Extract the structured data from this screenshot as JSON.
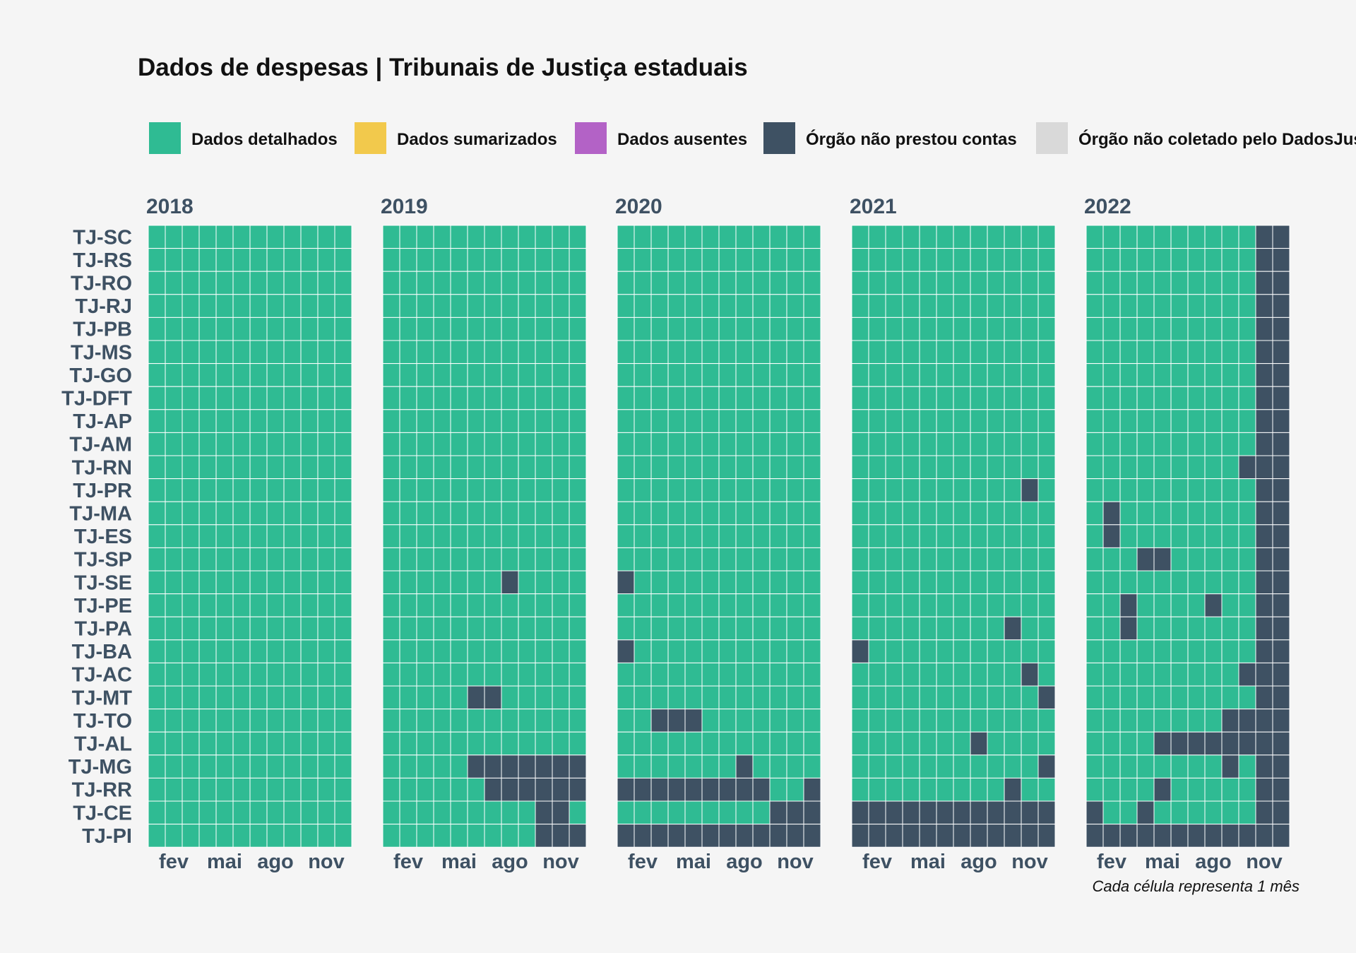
{
  "chart_data": {
    "type": "heatmap",
    "title": "Dados de despesas | Tribunais de Justiça estaduais",
    "caption": "Cada célula representa 1 mês",
    "legend": {
      "placement": "top",
      "entries": [
        {
          "key": "D",
          "label": "Dados detalhados",
          "color": "#2fbb93"
        },
        {
          "key": "S",
          "label": "Dados sumarizados",
          "color": "#f2c94c"
        },
        {
          "key": "A",
          "label": "Dados ausentes",
          "color": "#b362c6"
        },
        {
          "key": "N",
          "label": "Órgão não prestou contas",
          "color": "#3e5163"
        },
        {
          "key": "X",
          "label": "Órgão não coletado pelo DadosJusBr",
          "color": "#d9d9d9"
        }
      ]
    },
    "years": [
      "2018",
      "2019",
      "2020",
      "2021",
      "2022"
    ],
    "month_tick_labels": [
      {
        "month": 2,
        "label": "fev"
      },
      {
        "month": 5,
        "label": "mai"
      },
      {
        "month": 8,
        "label": "ago"
      },
      {
        "month": 11,
        "label": "nov"
      }
    ],
    "courts": [
      "TJ-SC",
      "TJ-RS",
      "TJ-RO",
      "TJ-RJ",
      "TJ-PB",
      "TJ-MS",
      "TJ-GO",
      "TJ-DFT",
      "TJ-AP",
      "TJ-AM",
      "TJ-RN",
      "TJ-PR",
      "TJ-MA",
      "TJ-ES",
      "TJ-SP",
      "TJ-SE",
      "TJ-PE",
      "TJ-PA",
      "TJ-BA",
      "TJ-AC",
      "TJ-MT",
      "TJ-TO",
      "TJ-AL",
      "TJ-MG",
      "TJ-RR",
      "TJ-CE",
      "TJ-PI"
    ],
    "default_status": "D",
    "not_reported_months": {
      "TJ-SC": {
        "2022": [
          11,
          12
        ]
      },
      "TJ-RS": {
        "2022": [
          11,
          12
        ]
      },
      "TJ-RO": {
        "2022": [
          11,
          12
        ]
      },
      "TJ-RJ": {
        "2022": [
          11,
          12
        ]
      },
      "TJ-PB": {
        "2022": [
          11,
          12
        ]
      },
      "TJ-MS": {
        "2022": [
          11,
          12
        ]
      },
      "TJ-GO": {
        "2022": [
          11,
          12
        ]
      },
      "TJ-DFT": {
        "2022": [
          11,
          12
        ]
      },
      "TJ-AP": {
        "2022": [
          11,
          12
        ]
      },
      "TJ-AM": {
        "2022": [
          11,
          12
        ]
      },
      "TJ-RN": {
        "2022": [
          10,
          11,
          12
        ]
      },
      "TJ-PR": {
        "2021": [
          11
        ],
        "2022": [
          11,
          12
        ]
      },
      "TJ-MA": {
        "2022": [
          2,
          11,
          12
        ]
      },
      "TJ-ES": {
        "2022": [
          2,
          11,
          12
        ]
      },
      "TJ-SP": {
        "2022": [
          4,
          5,
          11,
          12
        ]
      },
      "TJ-SE": {
        "2019": [
          8
        ],
        "2020": [
          1
        ],
        "2022": [
          11,
          12
        ]
      },
      "TJ-PE": {
        "2022": [
          3,
          8,
          11,
          12
        ]
      },
      "TJ-PA": {
        "2021": [
          10
        ],
        "2022": [
          3,
          11,
          12
        ]
      },
      "TJ-BA": {
        "2020": [
          1
        ],
        "2021": [
          1
        ],
        "2022": [
          11,
          12
        ]
      },
      "TJ-AC": {
        "2021": [
          11
        ],
        "2022": [
          10,
          11,
          12
        ]
      },
      "TJ-MT": {
        "2019": [
          6,
          7
        ],
        "2021": [
          12
        ],
        "2022": [
          11,
          12
        ]
      },
      "TJ-TO": {
        "2020": [
          3,
          4,
          5
        ],
        "2022": [
          9,
          10,
          11,
          12
        ]
      },
      "TJ-AL": {
        "2021": [
          8
        ],
        "2022": [
          5,
          6,
          7,
          8,
          9,
          10,
          11,
          12
        ]
      },
      "TJ-MG": {
        "2019": [
          6,
          7,
          8,
          9,
          10,
          11,
          12
        ],
        "2020": [
          8
        ],
        "2021": [
          12
        ],
        "2022": [
          9,
          11,
          12
        ]
      },
      "TJ-RR": {
        "2019": [
          7,
          8,
          9,
          10,
          11,
          12
        ],
        "2020": [
          1,
          2,
          3,
          4,
          5,
          6,
          7,
          8,
          9,
          12
        ],
        "2021": [
          10
        ],
        "2022": [
          5,
          11,
          12
        ]
      },
      "TJ-CE": {
        "2019": [
          10,
          11
        ],
        "2020": [
          10,
          11,
          12
        ],
        "2021": [
          1,
          2,
          3,
          4,
          5,
          6,
          7,
          8,
          9,
          10,
          11,
          12
        ],
        "2022": [
          1,
          4,
          11,
          12
        ]
      },
      "TJ-PI": {
        "2019": [
          10,
          11,
          12
        ],
        "2020": [
          1,
          2,
          3,
          4,
          5,
          6,
          7,
          8,
          9,
          10,
          11,
          12
        ],
        "2021": [
          1,
          2,
          3,
          4,
          5,
          6,
          7,
          8,
          9,
          10,
          11,
          12
        ],
        "2022": [
          1,
          2,
          3,
          4,
          5,
          6,
          7,
          8,
          9,
          10,
          11,
          12
        ]
      }
    }
  }
}
